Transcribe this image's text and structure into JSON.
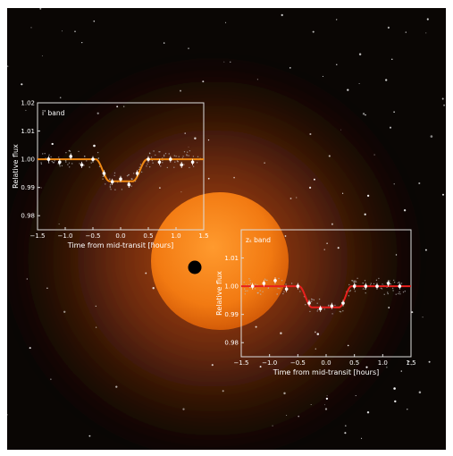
{
  "colors": {
    "background": "#0a0604",
    "star": "#ffe2b8",
    "planet": "#000000",
    "panel_frame": "#dddddd",
    "text": "#ffffff"
  },
  "chart_data": [
    {
      "type": "scatter",
      "band_label": "i' band",
      "xlabel": "Time from mid-transit [hours]",
      "ylabel": "Relative flux",
      "xlim": [
        -1.5,
        1.5
      ],
      "ylim": [
        0.975,
        1.02
      ],
      "xticks": [
        -1.5,
        -1.0,
        -0.5,
        0.0,
        0.5,
        1.0,
        1.5
      ],
      "xtick_labels": [
        "−1.5",
        "−1.0",
        "−0.5",
        "0.0",
        "0.5",
        "1.0",
        "1.5"
      ],
      "yticks": [
        0.98,
        0.99,
        1.0,
        1.01,
        1.02
      ],
      "ytick_labels": [
        "0.98",
        "0.99",
        "1.00",
        "1.01",
        "1.02"
      ],
      "model_color": "#f08a14",
      "model": {
        "baseline": 1.0,
        "depth": 0.0078,
        "t_ingress_start": -0.45,
        "t_full_start": -0.2,
        "t_full_end": 0.22,
        "t_egress_end": 0.48
      },
      "binned_points": {
        "x": [
          -1.3,
          -1.1,
          -0.9,
          -0.7,
          -0.5,
          -0.3,
          -0.15,
          0.0,
          0.15,
          0.3,
          0.5,
          0.7,
          0.9,
          1.1,
          1.3
        ],
        "y": [
          1.0,
          0.999,
          1.001,
          0.998,
          1.0,
          0.995,
          0.992,
          0.993,
          0.991,
          0.995,
          1.0,
          0.999,
          1.0,
          0.998,
          0.999
        ]
      }
    },
    {
      "type": "scatter",
      "band_label": "zₛ band",
      "xlabel": "Time from mid-transit [hours]",
      "ylabel": "Relative flux",
      "xlim": [
        -1.5,
        1.5
      ],
      "ylim": [
        0.975,
        1.02
      ],
      "xticks": [
        -1.5,
        -1.0,
        -0.5,
        0.0,
        0.5,
        1.0,
        1.5
      ],
      "xtick_labels": [
        "−1.5",
        "−1.0",
        "−0.5",
        "0.0",
        "0.5",
        "1.0",
        "1.5"
      ],
      "yticks": [
        0.98,
        0.99,
        1.0,
        1.01
      ],
      "ytick_labels": [
        "0.98",
        "0.99",
        "1.00",
        "1.01"
      ],
      "model_color": "#e8201e",
      "model": {
        "baseline": 1.0,
        "depth": 0.0075,
        "t_ingress_start": -0.48,
        "t_full_start": -0.25,
        "t_full_end": 0.23,
        "t_egress_end": 0.45
      },
      "binned_points": {
        "x": [
          -1.3,
          -1.1,
          -0.9,
          -0.7,
          -0.5,
          -0.3,
          -0.1,
          0.1,
          0.3,
          0.5,
          0.7,
          0.9,
          1.1,
          1.3
        ],
        "y": [
          1.0,
          1.001,
          1.002,
          0.999,
          1.0,
          0.994,
          0.992,
          0.993,
          0.994,
          1.0,
          1.0,
          1.0,
          1.001,
          1.0
        ]
      }
    }
  ]
}
